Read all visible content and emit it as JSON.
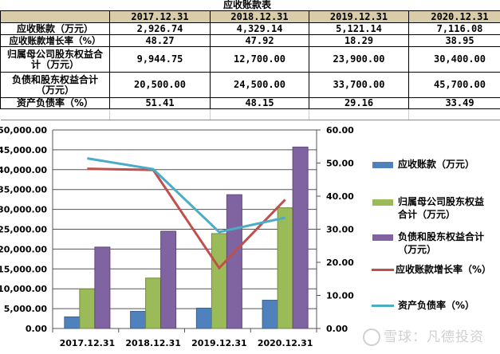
{
  "table": {
    "title": "应收账款表",
    "columns": [
      "",
      "2017.12.31",
      "2018.12.31",
      "2019.12.31",
      "2020.12.31"
    ],
    "rows": [
      {
        "label": "应收账款（万元）",
        "values": [
          "2,926.74",
          "4,329.14",
          "5,121.14",
          "7,116.08"
        ]
      },
      {
        "label": "应收账款增长率（%）",
        "values": [
          "48.27",
          "47.92",
          "18.29",
          "38.95"
        ]
      },
      {
        "label": "归属母公司股东权益合计（万元）",
        "values": [
          "9,944.75",
          "12,700.00",
          "23,900.00",
          "30,400.00"
        ]
      },
      {
        "label": "负债和股东权益合计（万元）",
        "values": [
          "20,500.00",
          "24,500.00",
          "33,700.00",
          "45,700.00"
        ]
      },
      {
        "label": "资产负债率（%）",
        "values": [
          "51.41",
          "48.15",
          "29.16",
          "33.49"
        ]
      }
    ]
  },
  "chart_data": {
    "type": "bar",
    "title": "",
    "categories": [
      "2017.12.31",
      "2018.12.31",
      "2019.12.31",
      "2020.12.31"
    ],
    "series": [
      {
        "name": "应收账款（万元）",
        "type": "bar",
        "axis": "left",
        "color": "#4f81bd",
        "values": [
          2926.74,
          4329.14,
          5121.14,
          7116.08
        ]
      },
      {
        "name": "归属母公司股东权益合计（万元）",
        "type": "bar",
        "axis": "left",
        "color": "#9bbb59",
        "values": [
          9944.75,
          12700.0,
          23900.0,
          30400.0
        ]
      },
      {
        "name": "负债和股东权益合计（万元）",
        "type": "bar",
        "axis": "left",
        "color": "#8064a2",
        "values": [
          20500.0,
          24500.0,
          33700.0,
          45700.0
        ]
      },
      {
        "name": "应收账款增长率（%）",
        "type": "line",
        "axis": "right",
        "color": "#c0504d",
        "values": [
          48.27,
          47.92,
          18.29,
          38.95
        ]
      },
      {
        "name": "资产负债率（%）",
        "type": "line",
        "axis": "right",
        "color": "#4bacc6",
        "values": [
          51.41,
          48.15,
          29.16,
          33.49
        ]
      }
    ],
    "y_left": {
      "ticks": [
        "0.00",
        "5,000.00",
        "10,000.00",
        "15,000.00",
        "20,000.00",
        "25,000.00",
        "30,000.00",
        "35,000.00",
        "40,000.00",
        "45,000.00",
        "50,000.00"
      ],
      "ylim": [
        0,
        50000
      ]
    },
    "y_right": {
      "ticks": [
        "0.00",
        "10.00",
        "20.00",
        "30.00",
        "40.00",
        "50.00",
        "60.00"
      ],
      "ylim": [
        0,
        60
      ]
    },
    "grid": true,
    "legend_position": "right"
  },
  "legend": [
    {
      "label_line1": "应收账款（万元）",
      "label_line2": ""
    },
    {
      "label_line1": "归属母公司股东权益",
      "label_line2": "合计（万元）"
    },
    {
      "label_line1": "负债和股东权益合计",
      "label_line2": "（万元）"
    },
    {
      "label_line1": "应收账款增长率（%）",
      "label_line2": ""
    },
    {
      "label_line1": "资产负债率（%）",
      "label_line2": ""
    }
  ],
  "watermark": "雪球：凡德投资"
}
